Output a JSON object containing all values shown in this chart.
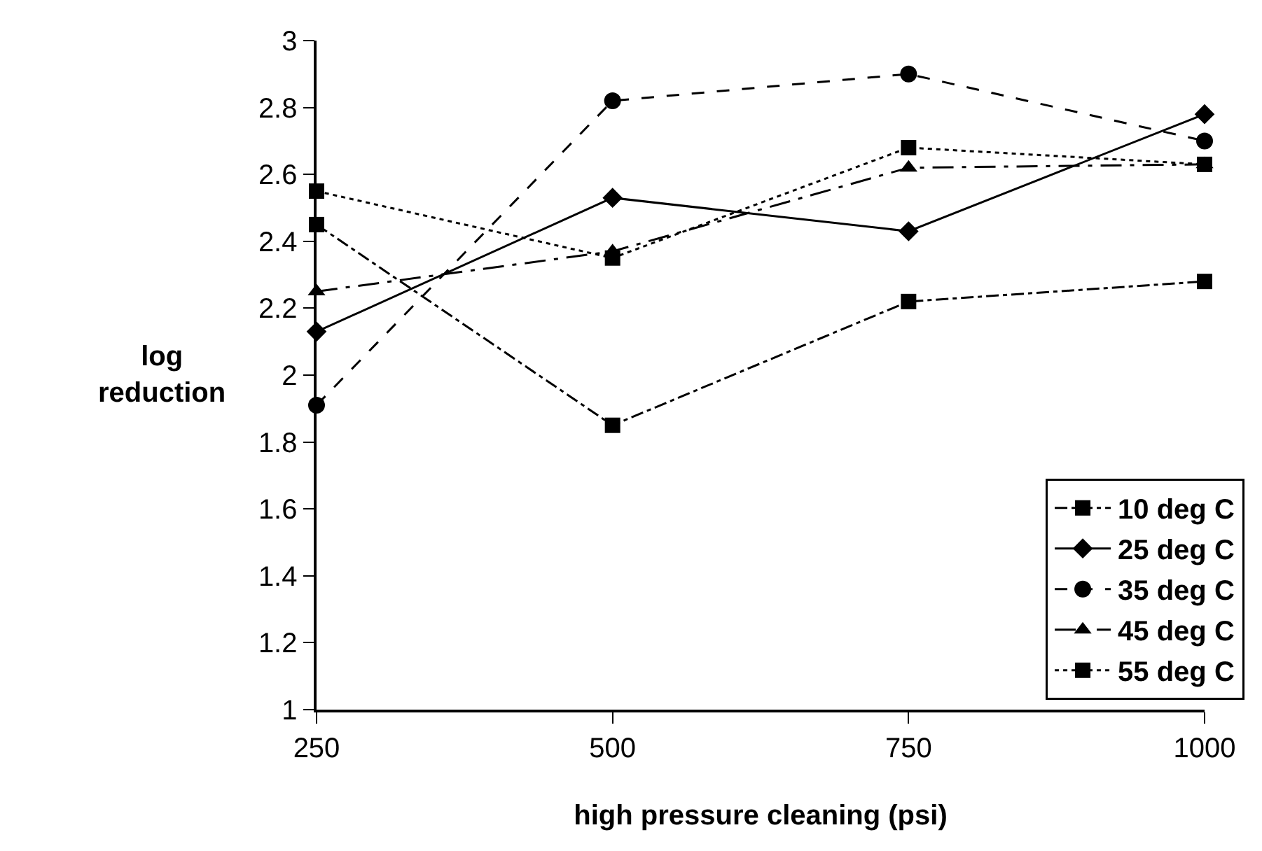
{
  "chart_data": {
    "type": "line",
    "xlabel": "high pressure cleaning (psi)",
    "ylabel": "log reduction",
    "x": [
      250,
      500,
      750,
      1000
    ],
    "xlim": [
      250,
      1000
    ],
    "xticks": [
      250,
      500,
      750,
      1000
    ],
    "ylim": [
      1,
      3
    ],
    "yticks": [
      1,
      1.2,
      1.4,
      1.6,
      1.8,
      2,
      2.2,
      2.4,
      2.6,
      2.8,
      3
    ],
    "grid": false,
    "legend": "bottom right",
    "series": [
      {
        "name": "10 deg C",
        "color": "#000000",
        "marker": "square",
        "line_style": "dashdot",
        "values": [
          2.45,
          1.85,
          2.22,
          2.28
        ]
      },
      {
        "name": "25 deg C",
        "color": "#000000",
        "marker": "diamond",
        "line_style": "solid",
        "values": [
          2.13,
          2.53,
          2.43,
          2.78
        ]
      },
      {
        "name": "35 deg C",
        "color": "#000000",
        "marker": "circle",
        "line_style": "dashed",
        "values": [
          1.91,
          2.82,
          2.9,
          2.7
        ]
      },
      {
        "name": "45 deg C",
        "color": "#000000",
        "marker": "triangle",
        "line_style": "longdashdot",
        "values": [
          2.25,
          2.37,
          2.62,
          2.63
        ]
      },
      {
        "name": "55 deg C",
        "color": "#000000",
        "marker": "square",
        "line_style": "dotted",
        "values": [
          2.55,
          2.35,
          2.68,
          2.63
        ]
      }
    ]
  }
}
